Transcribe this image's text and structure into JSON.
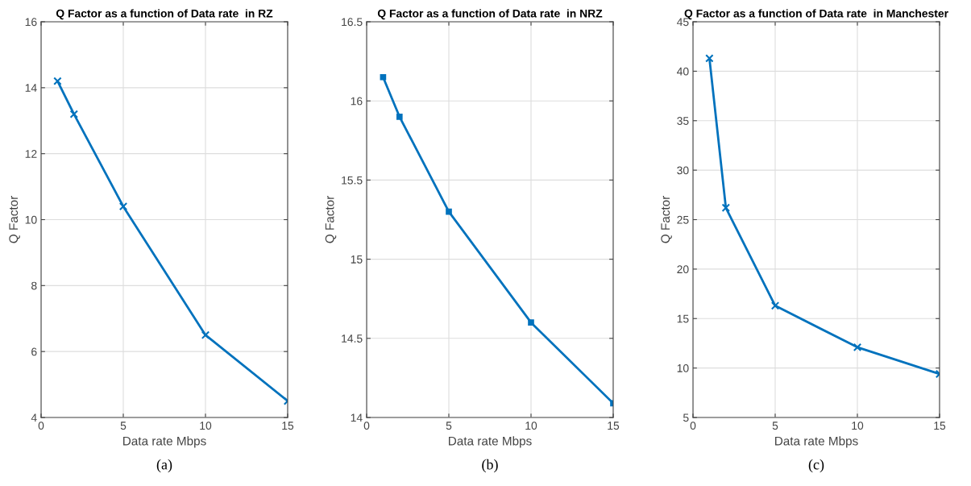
{
  "chart_data": [
    {
      "type": "line",
      "title": "Q Factor as a function of Data rate  in RZ",
      "xlabel": "Data rate Mbps",
      "ylabel": "Q Factor",
      "x": [
        1,
        2,
        5,
        10,
        15
      ],
      "series": [
        {
          "color": "#0072bd",
          "values": [
            14.2,
            13.2,
            10.4,
            6.5,
            4.5
          ]
        }
      ],
      "xlim": [
        0,
        15
      ],
      "xticks": [
        0,
        5,
        10,
        15
      ],
      "ylim": [
        4,
        16
      ],
      "yticks": [
        4,
        6,
        8,
        10,
        12,
        14,
        16
      ],
      "grid": true,
      "marker": "cross",
      "line_style": "solid",
      "annotations": [
        "(a)"
      ]
    },
    {
      "type": "line",
      "title": "Q Factor as a function of Data rate  in NRZ",
      "xlabel": "Data rate Mbps",
      "ylabel": "Q Factor",
      "x": [
        1,
        2,
        5,
        10,
        15
      ],
      "series": [
        {
          "color": "#0072bd",
          "values": [
            16.15,
            15.9,
            15.3,
            14.6,
            14.09
          ]
        }
      ],
      "xlim": [
        0,
        15
      ],
      "xticks": [
        0,
        5,
        10,
        15
      ],
      "ylim": [
        14,
        16.5
      ],
      "yticks": [
        14,
        14.5,
        15,
        15.5,
        16,
        16.5
      ],
      "grid": true,
      "marker": "square",
      "line_style": "solid",
      "annotations": [
        "(b)"
      ]
    },
    {
      "type": "line",
      "title": "Q Factor as a function of Data rate  in Manchester",
      "xlabel": "Data rate Mbps",
      "ylabel": "Q Factor",
      "x": [
        1,
        2,
        5,
        10,
        15
      ],
      "series": [
        {
          "color": "#0072bd",
          "values": [
            41.3,
            26.2,
            16.3,
            12.1,
            9.4
          ]
        }
      ],
      "xlim": [
        0,
        15
      ],
      "xticks": [
        0,
        5,
        10,
        15
      ],
      "ylim": [
        5,
        45
      ],
      "yticks": [
        5,
        10,
        15,
        20,
        25,
        30,
        35,
        40,
        45
      ],
      "grid": true,
      "marker": "cross",
      "line_style": "solid",
      "annotations": [
        "(c)"
      ]
    }
  ]
}
